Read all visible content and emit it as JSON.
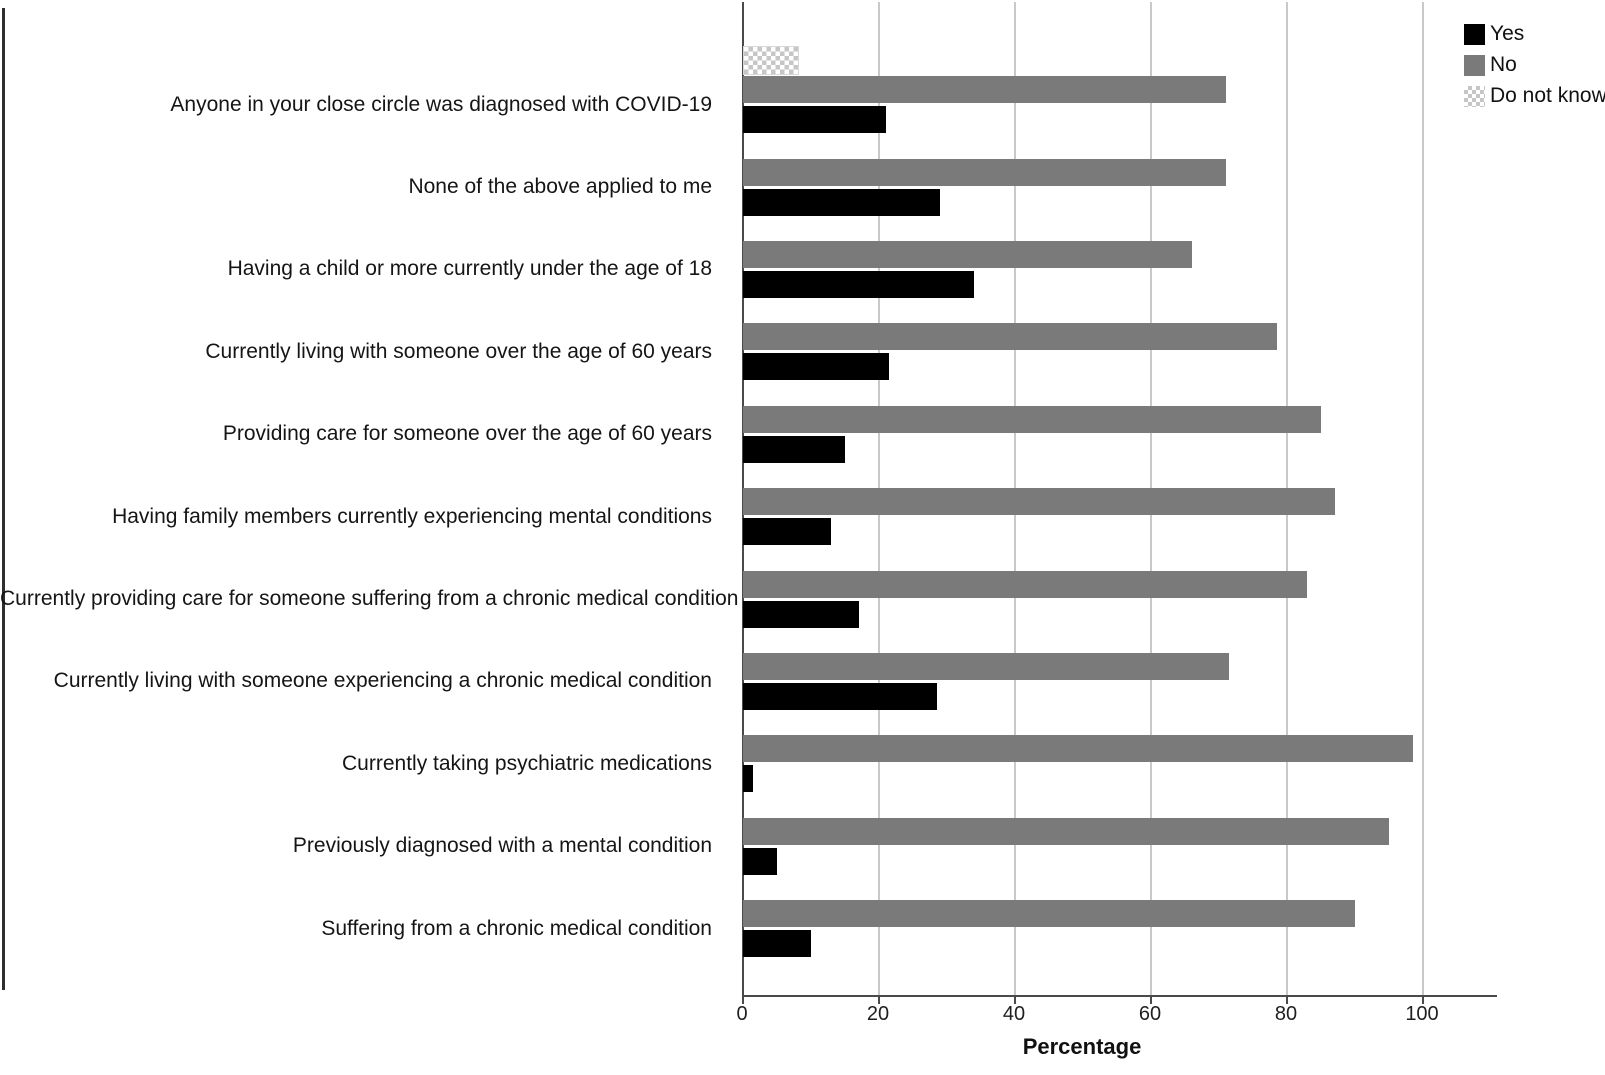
{
  "figure": {
    "background": "#ffffff"
  },
  "colors": {
    "yes": "#000000",
    "no": "#7a7a7a",
    "do_not_know": "#c6c6c6",
    "gridline": "#c9c9c9",
    "axis": "#4a4a4a",
    "text": "#1a1a1a"
  },
  "legend": {
    "items": [
      {
        "label": "Yes",
        "swatch": "solid-black"
      },
      {
        "label": "No",
        "swatch": "solid-gray"
      },
      {
        "label": "Do not know",
        "swatch": "checkered-light-gray"
      }
    ]
  },
  "chart_data": {
    "type": "bar",
    "orientation": "horizontal",
    "title": "",
    "xlabel": "Percentage",
    "ylabel": "",
    "xlim": [
      0,
      110
    ],
    "xticks": [
      0,
      20,
      40,
      60,
      80,
      100
    ],
    "grid": true,
    "legend_position": "top-right",
    "categories": [
      "Anyone in your close circle was diagnosed with COVID-19",
      "None of the above applied to me",
      "Having a child or more currently under the age of 18",
      "Currently living with someone over the age of 60 years",
      "Providing care for someone over the age of 60 years",
      "Having family members currently experiencing mental conditions",
      "Currently providing care for someone suffering from a chronic medical condition",
      "Currently living with someone experiencing a chronic medical condition",
      "Currently taking psychiatric medications",
      "Previously diagnosed with a mental condition",
      "Suffering from a chronic medical condition"
    ],
    "series": [
      {
        "name": "Yes",
        "values": [
          21,
          29,
          34,
          21.5,
          15,
          13,
          17,
          28.5,
          1.5,
          5,
          10
        ]
      },
      {
        "name": "No",
        "values": [
          71,
          71,
          66,
          78.5,
          85,
          87,
          83,
          71.5,
          98.5,
          95,
          90
        ]
      },
      {
        "name": "Do not know",
        "values": [
          8,
          null,
          null,
          null,
          null,
          null,
          null,
          null,
          null,
          null,
          null
        ]
      }
    ]
  }
}
